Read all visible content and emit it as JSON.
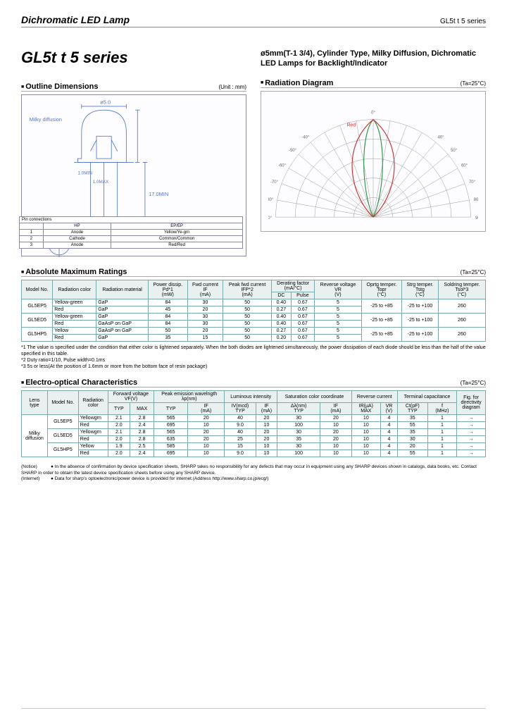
{
  "header": {
    "product": "Dichromatic LED Lamp",
    "series_right": "GL5t t 5 series"
  },
  "title": "GL5t t 5 series",
  "description": "ø5mm(T-1 3/4), Cylinder Type, Milky Diffusion, Dichromatic LED Lamps for Backlight/Indicator",
  "outline": {
    "label": "Outline Dimensions",
    "unit": "(Unit : mm)"
  },
  "radiation": {
    "label": "Radiation Diagram",
    "unit": "(Ta=25°C)"
  },
  "led_labels": {
    "milky": "Milky diffusion",
    "pin_title": "Pin connections"
  },
  "pins": {
    "h1": "HP",
    "h2": "EP/EP",
    "r1a": "1",
    "r1b": "Anode",
    "r1c": "Yellow/Ye-grn",
    "r2a": "2",
    "r2b": "Cathode",
    "r2c": "Common/Common",
    "r3a": "3",
    "r3b": "Anode",
    "r3c": "Red/Red"
  },
  "abs": {
    "label": "Absolute Maximum Ratings",
    "unit": "(Ta=25°C)",
    "h": {
      "model": "Model No.",
      "rcol": "Radiation color",
      "rmat": "Radiation material",
      "pd": "Power dissip.\nPd*1\n(mW)",
      "if": "Fwd current\nIF\n(mA)",
      "ifp": "Peak fwd current\nIFP*2\n(mA)",
      "derat": "Derating factor\n(mA/°C)",
      "dc": "DC",
      "pulse": "Pulse",
      "vr": "Reverse voltage\nVR\n(V)",
      "topr": "Oprtg temper.\nTopr\n(°C)",
      "tstg": "Strg temper.\nTstg\n(°C)",
      "tsol": "Soldring temper.\nTsol*3\n(°C)"
    },
    "rows": [
      {
        "model": "GL5EP5",
        "color": "Yellow-green",
        "mat": "GaP",
        "pd": "84",
        "if": "30",
        "ifp": "50",
        "dc": "0.40",
        "pulse": "0.67",
        "vr": "5",
        "topr": "-25 to +85",
        "tstg": "-25 to +100",
        "tsol": "260"
      },
      {
        "model": "",
        "color": "Red",
        "mat": "GaP",
        "pd": "45",
        "if": "20",
        "ifp": "50",
        "dc": "0.27",
        "pulse": "0.67",
        "vr": "5",
        "topr": "",
        "tstg": "",
        "tsol": ""
      },
      {
        "model": "GL5ED5",
        "color": "Yellow-green",
        "mat": "GaP",
        "pd": "84",
        "if": "30",
        "ifp": "50",
        "dc": "0.40",
        "pulse": "0.67",
        "vr": "5",
        "topr": "-25 to +85",
        "tstg": "-25 to +100",
        "tsol": "260"
      },
      {
        "model": "",
        "color": "Red",
        "mat": "GaAsP on GaP",
        "pd": "84",
        "if": "30",
        "ifp": "50",
        "dc": "0.40",
        "pulse": "0.67",
        "vr": "5",
        "topr": "",
        "tstg": "",
        "tsol": ""
      },
      {
        "model": "GL5HP5",
        "color": "Yellow",
        "mat": "GaAsP on GaP",
        "pd": "50",
        "if": "20",
        "ifp": "50",
        "dc": "0.27",
        "pulse": "0.67",
        "vr": "5",
        "topr": "-25 to +85",
        "tstg": "-25 to +100",
        "tsol": "260"
      },
      {
        "model": "",
        "color": "Red",
        "mat": "GaP",
        "pd": "35",
        "if": "15",
        "ifp": "50",
        "dc": "0.20",
        "pulse": "0.67",
        "vr": "5",
        "topr": "",
        "tstg": "",
        "tsol": ""
      }
    ],
    "notes": [
      "*1 The value is specified under the condition that either color is lightened separately. When the both diodes are lightened simultaneously, the power dissipation of each diode should be less than the half of the value specified in this table.",
      "*2 Duty ratio=1/10, Pulse width=0.1ms",
      "*3 5s or less(At the position of 1.6mm or more from the bottom face of resin package)"
    ]
  },
  "eo": {
    "label": "Electro-optical Characteristics",
    "unit": "(Ta=25°C)",
    "h": {
      "lens": "Lens\ntype",
      "model": "Model No.",
      "rcol": "Radiation\ncolor",
      "vf": "Forward voltage\nVF(V)",
      "typ": "TYP",
      "max": "MAX",
      "wl": "Peak emission wavelngth\nλp(nm)",
      "wltyp": "TYP",
      "wlif": "IF\n(mA)",
      "lum": "Luminous intensity",
      "lum_s": "IV(mcd)\nTYP",
      "lum_if": "IF\n(mA)",
      "sat": "Saturation color coordinate",
      "sat_l": "Δλ(nm)\nTYP",
      "sat_if": "IF\n(mA)",
      "rev": "Reverse current",
      "rev_i": "IR(μA)\nMAX",
      "rev_v": "VR\n(V)",
      "cap": "Terminal capacitance",
      "cap_c": "Ct(pF)\nTYP",
      "cap_f": "f\n(MHz)",
      "fig": "Fig. for\ndirectivity\ndiagram"
    },
    "lens": "Milky\ndiffusion",
    "rows": [
      {
        "model": "GL5EP5",
        "color": "Yellowgrn",
        "vft": "2.1",
        "vfm": "2.8",
        "wl": "565",
        "wlif": "20",
        "lum": "40",
        "lumif": "20",
        "sat": "30",
        "satif": "20",
        "ir": "10",
        "vr": "4",
        "ct": "35",
        "f": "1",
        "fig": "→"
      },
      {
        "model": "",
        "color": "Red",
        "vft": "2.0",
        "vfm": "2.4",
        "wl": "695",
        "wlif": "10",
        "lum": "9.0",
        "lumif": "10",
        "sat": "100",
        "satif": "10",
        "ir": "10",
        "vr": "4",
        "ct": "55",
        "f": "1",
        "fig": "→"
      },
      {
        "model": "GL5ED5",
        "color": "Yellowgrn",
        "vft": "2.1",
        "vfm": "2.8",
        "wl": "565",
        "wlif": "20",
        "lum": "40",
        "lumif": "20",
        "sat": "30",
        "satif": "20",
        "ir": "10",
        "vr": "4",
        "ct": "35",
        "f": "1",
        "fig": "→"
      },
      {
        "model": "",
        "color": "Red",
        "vft": "2.0",
        "vfm": "2.8",
        "wl": "635",
        "wlif": "20",
        "lum": "25",
        "lumif": "20",
        "sat": "35",
        "satif": "20",
        "ir": "10",
        "vr": "4",
        "ct": "30",
        "f": "1",
        "fig": "→"
      },
      {
        "model": "GL5HP5",
        "color": "Yellow",
        "vft": "1.9",
        "vfm": "2.5",
        "wl": "585",
        "wlif": "10",
        "lum": "15",
        "lumif": "10",
        "sat": "30",
        "satif": "10",
        "ir": "10",
        "vr": "4",
        "ct": "20",
        "f": "1",
        "fig": "→"
      },
      {
        "model": "",
        "color": "Red",
        "vft": "2.0",
        "vfm": "2.4",
        "wl": "695",
        "wlif": "10",
        "lum": "9.0",
        "lumif": "10",
        "sat": "100",
        "satif": "10",
        "ir": "10",
        "vr": "4",
        "ct": "55",
        "f": "1",
        "fig": "→"
      }
    ]
  },
  "footer": {
    "notice": "(Notice)",
    "notice_txt": "● In the absence of confirmation by device specification sheets, SHARP takes no responsibility for any defects that may occur in equipment using any SHARP devices shown in catalogs, data books, etc. Contact SHARP in order to obtain the latest device specification sheets before using any SHARP device.",
    "internet": "(Internet)",
    "internet_txt": "● Data for sharp's optoelectronic/power device is provided for internet.(Address http://www.sharp.co.jp/ecg/)"
  },
  "polar": {
    "ticks": [
      "90°",
      "80°",
      "70°",
      "60°",
      "50°",
      "40°",
      "-40°",
      "-50°",
      "-60°",
      "-70°",
      "-80°",
      "-90°",
      "0°",
      "10°",
      "20°",
      "30°",
      "-10°",
      "-20°",
      "-30°"
    ],
    "colors": {
      "red": "#d0332e",
      "ygrn": "#2e9a46",
      "axis": "#777"
    }
  }
}
